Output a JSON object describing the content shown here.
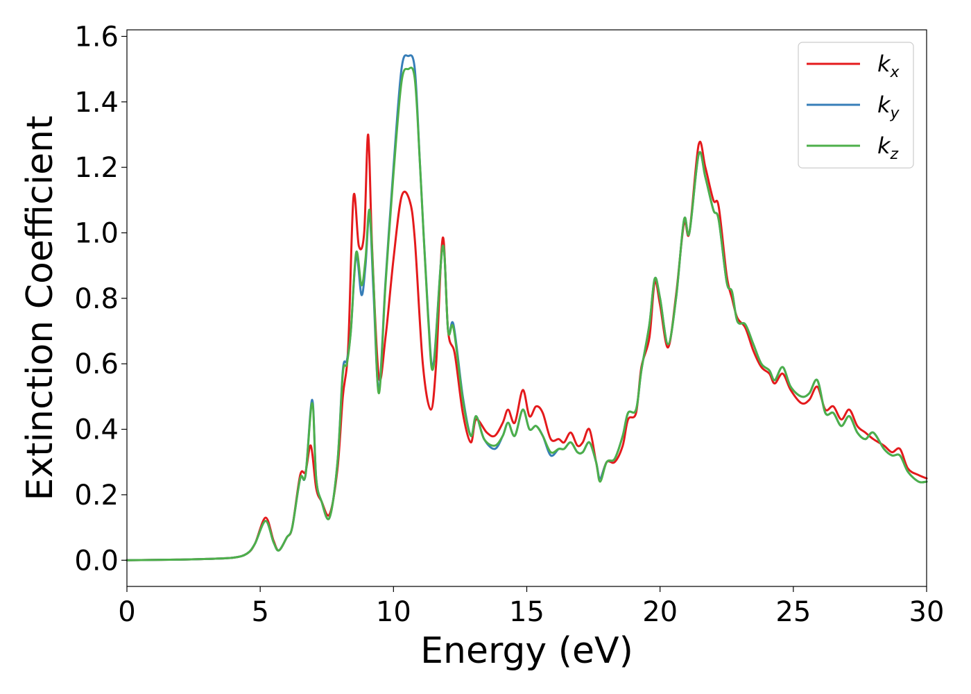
{
  "chart_data": {
    "type": "line",
    "xlabel": "Energy (eV)",
    "ylabel": "Extinction Coefficient",
    "xlim": [
      0,
      30
    ],
    "ylim": [
      -0.08,
      1.62
    ],
    "xticks": [
      0,
      5,
      10,
      15,
      20,
      25,
      30
    ],
    "xtick_labels": [
      "0",
      "5",
      "10",
      "15",
      "20",
      "25",
      "30"
    ],
    "yticks": [
      0.0,
      0.2,
      0.4,
      0.6,
      0.8,
      1.0,
      1.2,
      1.4,
      1.6
    ],
    "ytick_labels": [
      "0.0",
      "0.2",
      "0.4",
      "0.6",
      "0.8",
      "1.0",
      "1.2",
      "1.4",
      "1.6"
    ],
    "grid": false,
    "legend_position": "top-right",
    "series": [
      {
        "name": "k_x",
        "legend_base": "k",
        "legend_sub": "x",
        "color": "#e41a1c",
        "points": [
          [
            0,
            0
          ],
          [
            2,
            0.002
          ],
          [
            3,
            0.004
          ],
          [
            4,
            0.008
          ],
          [
            4.5,
            0.02
          ],
          [
            4.8,
            0.05
          ],
          [
            5.2,
            0.13
          ],
          [
            5.5,
            0.06
          ],
          [
            5.7,
            0.03
          ],
          [
            6.0,
            0.07
          ],
          [
            6.2,
            0.1
          ],
          [
            6.5,
            0.26
          ],
          [
            6.7,
            0.27
          ],
          [
            6.9,
            0.35
          ],
          [
            7.1,
            0.22
          ],
          [
            7.3,
            0.18
          ],
          [
            7.6,
            0.14
          ],
          [
            7.9,
            0.28
          ],
          [
            8.1,
            0.5
          ],
          [
            8.3,
            0.65
          ],
          [
            8.5,
            1.11
          ],
          [
            8.7,
            0.96
          ],
          [
            8.9,
            1.0
          ],
          [
            9.05,
            1.3
          ],
          [
            9.2,
            0.95
          ],
          [
            9.45,
            0.56
          ],
          [
            9.7,
            0.68
          ],
          [
            10.0,
            0.92
          ],
          [
            10.3,
            1.11
          ],
          [
            10.6,
            1.1
          ],
          [
            10.8,
            0.98
          ],
          [
            11.1,
            0.6
          ],
          [
            11.4,
            0.46
          ],
          [
            11.6,
            0.6
          ],
          [
            11.85,
            0.985
          ],
          [
            12.05,
            0.7
          ],
          [
            12.3,
            0.63
          ],
          [
            12.6,
            0.45
          ],
          [
            12.9,
            0.36
          ],
          [
            13.1,
            0.43
          ],
          [
            13.5,
            0.39
          ],
          [
            13.8,
            0.38
          ],
          [
            14.1,
            0.42
          ],
          [
            14.3,
            0.46
          ],
          [
            14.55,
            0.42
          ],
          [
            14.85,
            0.52
          ],
          [
            15.1,
            0.44
          ],
          [
            15.35,
            0.47
          ],
          [
            15.6,
            0.45
          ],
          [
            15.9,
            0.37
          ],
          [
            16.2,
            0.37
          ],
          [
            16.4,
            0.36
          ],
          [
            16.65,
            0.39
          ],
          [
            16.9,
            0.35
          ],
          [
            17.1,
            0.36
          ],
          [
            17.35,
            0.4
          ],
          [
            17.6,
            0.3
          ],
          [
            17.75,
            0.25
          ],
          [
            18.0,
            0.3
          ],
          [
            18.3,
            0.3
          ],
          [
            18.6,
            0.35
          ],
          [
            18.8,
            0.43
          ],
          [
            19.1,
            0.45
          ],
          [
            19.3,
            0.59
          ],
          [
            19.6,
            0.68
          ],
          [
            19.8,
            0.85
          ],
          [
            20.0,
            0.78
          ],
          [
            20.3,
            0.65
          ],
          [
            20.6,
            0.81
          ],
          [
            20.9,
            1.03
          ],
          [
            21.1,
            1.0
          ],
          [
            21.45,
            1.27
          ],
          [
            21.7,
            1.2
          ],
          [
            22.0,
            1.1
          ],
          [
            22.2,
            1.08
          ],
          [
            22.5,
            0.87
          ],
          [
            22.7,
            0.8
          ],
          [
            22.9,
            0.74
          ],
          [
            23.2,
            0.71
          ],
          [
            23.5,
            0.64
          ],
          [
            23.8,
            0.59
          ],
          [
            24.1,
            0.57
          ],
          [
            24.3,
            0.54
          ],
          [
            24.6,
            0.57
          ],
          [
            24.9,
            0.52
          ],
          [
            25.3,
            0.48
          ],
          [
            25.6,
            0.49
          ],
          [
            25.9,
            0.53
          ],
          [
            26.2,
            0.46
          ],
          [
            26.5,
            0.47
          ],
          [
            26.8,
            0.43
          ],
          [
            27.1,
            0.46
          ],
          [
            27.4,
            0.41
          ],
          [
            27.7,
            0.39
          ],
          [
            28.0,
            0.37
          ],
          [
            28.4,
            0.35
          ],
          [
            28.7,
            0.33
          ],
          [
            29.0,
            0.34
          ],
          [
            29.3,
            0.28
          ],
          [
            29.7,
            0.26
          ],
          [
            30,
            0.25
          ]
        ]
      },
      {
        "name": "k_y",
        "legend_base": "k",
        "legend_sub": "y",
        "color": "#377eb8",
        "points": [
          [
            0,
            0
          ],
          [
            2,
            0.002
          ],
          [
            3,
            0.004
          ],
          [
            4,
            0.008
          ],
          [
            4.5,
            0.02
          ],
          [
            4.8,
            0.05
          ],
          [
            5.2,
            0.12
          ],
          [
            5.5,
            0.055
          ],
          [
            5.7,
            0.03
          ],
          [
            6.0,
            0.07
          ],
          [
            6.2,
            0.1
          ],
          [
            6.5,
            0.25
          ],
          [
            6.7,
            0.26
          ],
          [
            6.95,
            0.49
          ],
          [
            7.1,
            0.25
          ],
          [
            7.3,
            0.18
          ],
          [
            7.6,
            0.13
          ],
          [
            7.9,
            0.3
          ],
          [
            8.1,
            0.58
          ],
          [
            8.25,
            0.61
          ],
          [
            8.4,
            0.7
          ],
          [
            8.6,
            0.93
          ],
          [
            8.8,
            0.81
          ],
          [
            8.95,
            0.9
          ],
          [
            9.1,
            1.06
          ],
          [
            9.25,
            0.82
          ],
          [
            9.45,
            0.52
          ],
          [
            9.7,
            0.85
          ],
          [
            10.0,
            1.2
          ],
          [
            10.3,
            1.5
          ],
          [
            10.55,
            1.54
          ],
          [
            10.8,
            1.5
          ],
          [
            11.0,
            1.2
          ],
          [
            11.3,
            0.75
          ],
          [
            11.5,
            0.6
          ],
          [
            11.85,
            0.96
          ],
          [
            12.05,
            0.7
          ],
          [
            12.25,
            0.72
          ],
          [
            12.6,
            0.5
          ],
          [
            12.9,
            0.38
          ],
          [
            13.1,
            0.44
          ],
          [
            13.4,
            0.37
          ],
          [
            13.8,
            0.34
          ],
          [
            14.1,
            0.38
          ],
          [
            14.3,
            0.42
          ],
          [
            14.55,
            0.38
          ],
          [
            14.85,
            0.46
          ],
          [
            15.1,
            0.4
          ],
          [
            15.35,
            0.41
          ],
          [
            15.6,
            0.38
          ],
          [
            15.9,
            0.32
          ],
          [
            16.2,
            0.34
          ],
          [
            16.4,
            0.34
          ],
          [
            16.65,
            0.36
          ],
          [
            16.9,
            0.33
          ],
          [
            17.1,
            0.33
          ],
          [
            17.35,
            0.36
          ],
          [
            17.6,
            0.3
          ],
          [
            17.75,
            0.25
          ],
          [
            18.0,
            0.3
          ],
          [
            18.3,
            0.31
          ],
          [
            18.6,
            0.38
          ],
          [
            18.8,
            0.45
          ],
          [
            19.1,
            0.46
          ],
          [
            19.3,
            0.58
          ],
          [
            19.6,
            0.72
          ],
          [
            19.8,
            0.86
          ],
          [
            20.0,
            0.8
          ],
          [
            20.3,
            0.66
          ],
          [
            20.6,
            0.8
          ],
          [
            20.9,
            1.04
          ],
          [
            21.1,
            1.0
          ],
          [
            21.45,
            1.24
          ],
          [
            21.7,
            1.17
          ],
          [
            22.0,
            1.07
          ],
          [
            22.2,
            1.04
          ],
          [
            22.5,
            0.85
          ],
          [
            22.7,
            0.82
          ],
          [
            22.9,
            0.73
          ],
          [
            23.2,
            0.72
          ],
          [
            23.5,
            0.66
          ],
          [
            23.8,
            0.6
          ],
          [
            24.1,
            0.58
          ],
          [
            24.3,
            0.55
          ],
          [
            24.6,
            0.59
          ],
          [
            24.9,
            0.53
          ],
          [
            25.3,
            0.5
          ],
          [
            25.6,
            0.51
          ],
          [
            25.9,
            0.55
          ],
          [
            26.2,
            0.45
          ],
          [
            26.5,
            0.45
          ],
          [
            26.8,
            0.41
          ],
          [
            27.1,
            0.44
          ],
          [
            27.4,
            0.39
          ],
          [
            27.7,
            0.37
          ],
          [
            28.0,
            0.39
          ],
          [
            28.4,
            0.34
          ],
          [
            28.7,
            0.32
          ],
          [
            29.0,
            0.32
          ],
          [
            29.3,
            0.27
          ],
          [
            29.7,
            0.24
          ],
          [
            30,
            0.24
          ]
        ]
      },
      {
        "name": "k_z",
        "legend_base": "k",
        "legend_sub": "z",
        "color": "#4daf4a",
        "points": [
          [
            0,
            0
          ],
          [
            2,
            0.002
          ],
          [
            3,
            0.004
          ],
          [
            4,
            0.008
          ],
          [
            4.5,
            0.02
          ],
          [
            4.8,
            0.05
          ],
          [
            5.2,
            0.12
          ],
          [
            5.5,
            0.055
          ],
          [
            5.7,
            0.03
          ],
          [
            6.0,
            0.07
          ],
          [
            6.2,
            0.1
          ],
          [
            6.5,
            0.25
          ],
          [
            6.7,
            0.26
          ],
          [
            6.95,
            0.48
          ],
          [
            7.1,
            0.25
          ],
          [
            7.3,
            0.18
          ],
          [
            7.6,
            0.13
          ],
          [
            7.9,
            0.3
          ],
          [
            8.1,
            0.57
          ],
          [
            8.25,
            0.6
          ],
          [
            8.4,
            0.7
          ],
          [
            8.6,
            0.94
          ],
          [
            8.8,
            0.84
          ],
          [
            8.95,
            0.92
          ],
          [
            9.1,
            1.07
          ],
          [
            9.25,
            0.85
          ],
          [
            9.45,
            0.51
          ],
          [
            9.7,
            0.84
          ],
          [
            10.0,
            1.18
          ],
          [
            10.3,
            1.46
          ],
          [
            10.55,
            1.5
          ],
          [
            10.8,
            1.47
          ],
          [
            11.0,
            1.2
          ],
          [
            11.3,
            0.74
          ],
          [
            11.5,
            0.59
          ],
          [
            11.85,
            0.96
          ],
          [
            12.05,
            0.7
          ],
          [
            12.25,
            0.71
          ],
          [
            12.6,
            0.49
          ],
          [
            12.9,
            0.38
          ],
          [
            13.1,
            0.44
          ],
          [
            13.4,
            0.37
          ],
          [
            13.8,
            0.35
          ],
          [
            14.1,
            0.38
          ],
          [
            14.3,
            0.42
          ],
          [
            14.55,
            0.38
          ],
          [
            14.85,
            0.46
          ],
          [
            15.1,
            0.4
          ],
          [
            15.35,
            0.41
          ],
          [
            15.6,
            0.38
          ],
          [
            15.9,
            0.33
          ],
          [
            16.2,
            0.34
          ],
          [
            16.4,
            0.34
          ],
          [
            16.65,
            0.36
          ],
          [
            16.9,
            0.33
          ],
          [
            17.1,
            0.33
          ],
          [
            17.35,
            0.36
          ],
          [
            17.6,
            0.3
          ],
          [
            17.75,
            0.24
          ],
          [
            18.0,
            0.3
          ],
          [
            18.3,
            0.31
          ],
          [
            18.6,
            0.38
          ],
          [
            18.8,
            0.45
          ],
          [
            19.1,
            0.46
          ],
          [
            19.3,
            0.58
          ],
          [
            19.6,
            0.72
          ],
          [
            19.8,
            0.86
          ],
          [
            20.0,
            0.8
          ],
          [
            20.3,
            0.66
          ],
          [
            20.6,
            0.8
          ],
          [
            20.9,
            1.04
          ],
          [
            21.1,
            1.0
          ],
          [
            21.45,
            1.24
          ],
          [
            21.7,
            1.17
          ],
          [
            22.0,
            1.07
          ],
          [
            22.2,
            1.04
          ],
          [
            22.5,
            0.85
          ],
          [
            22.7,
            0.82
          ],
          [
            22.9,
            0.73
          ],
          [
            23.2,
            0.72
          ],
          [
            23.5,
            0.66
          ],
          [
            23.8,
            0.6
          ],
          [
            24.1,
            0.58
          ],
          [
            24.3,
            0.55
          ],
          [
            24.6,
            0.59
          ],
          [
            24.9,
            0.53
          ],
          [
            25.3,
            0.5
          ],
          [
            25.6,
            0.51
          ],
          [
            25.9,
            0.55
          ],
          [
            26.2,
            0.45
          ],
          [
            26.5,
            0.45
          ],
          [
            26.8,
            0.41
          ],
          [
            27.1,
            0.44
          ],
          [
            27.4,
            0.39
          ],
          [
            27.7,
            0.37
          ],
          [
            28.0,
            0.39
          ],
          [
            28.4,
            0.34
          ],
          [
            28.7,
            0.32
          ],
          [
            29.0,
            0.32
          ],
          [
            29.3,
            0.27
          ],
          [
            29.7,
            0.24
          ],
          [
            30,
            0.24
          ]
        ]
      }
    ]
  }
}
